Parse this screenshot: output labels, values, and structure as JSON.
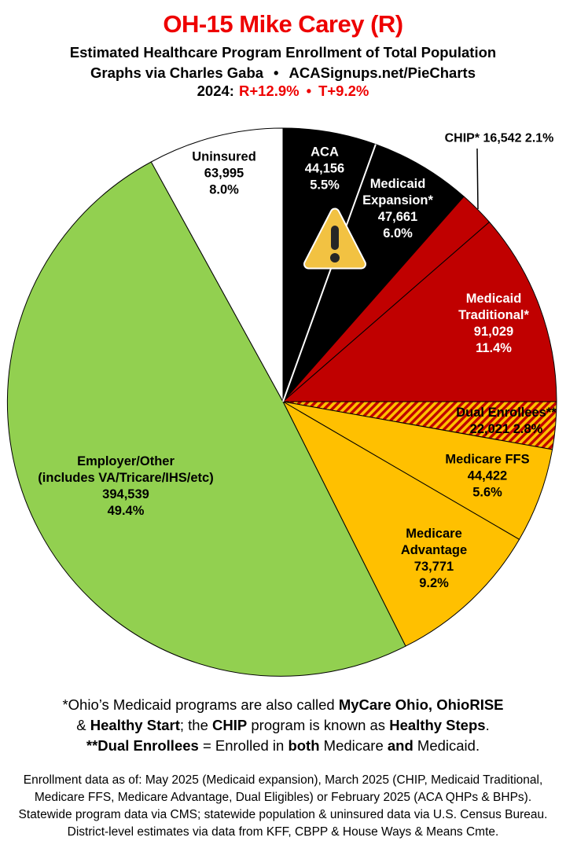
{
  "header": {
    "title": "OH-15 Mike Carey (R)",
    "subtitle": "Estimated Healthcare Program Enrollment of Total Population",
    "credit_left": "Graphs via Charles Gaba",
    "credit_bullet": "•",
    "credit_right": "ACASignups.net/PieCharts",
    "year_label": "2024:",
    "r_lean": "R+12.9%",
    "lean_bullet": "•",
    "t_lean": "T+9.2%"
  },
  "colors": {
    "title_red": "#ee0000",
    "black_slice": "#000000",
    "dark_red_slice": "#C00000",
    "gold_slice": "#FFC000",
    "green_slice": "#92D050",
    "white_slice": "#FFFFFF",
    "hatch_red": "#C00000",
    "hatch_gold": "#FFC000",
    "warning_yellow": "#F2C242",
    "warning_mark": "#262626",
    "warning_rim": "#FFFFFF"
  },
  "icons": {
    "warning": "⚠"
  },
  "chart_data": {
    "type": "pie",
    "title": "OH-15 Mike Carey (R) — Estimated Healthcare Program Enrollment of Total Population",
    "start_angle": "12 o'clock, clockwise",
    "legend_position": "labels on slices",
    "slices": [
      {
        "label": "ACA",
        "value": "44,156",
        "pct": "5.5%",
        "pct_value": 5.5,
        "color": "#000000",
        "text_color": "#ffffff"
      },
      {
        "label": "Medicaid Expansion*",
        "value": "47,661",
        "pct": "6.0%",
        "pct_value": 6.0,
        "color": "#000000",
        "text_color": "#ffffff"
      },
      {
        "label": "CHIP*",
        "value": "16,542",
        "pct": "2.1%",
        "pct_value": 2.1,
        "color": "#C00000",
        "text_color": "#000000"
      },
      {
        "label": "Medicaid Traditional*",
        "value": "91,029",
        "pct": "11.4%",
        "pct_value": 11.4,
        "color": "#C00000",
        "text_color": "#ffffff"
      },
      {
        "label": "Dual Enrollees**",
        "value": "22,021",
        "pct": "2.8%",
        "pct_value": 2.8,
        "color": "hatch",
        "text_color": "#000000"
      },
      {
        "label": "Medicare FFS",
        "value": "44,422",
        "pct": "5.6%",
        "pct_value": 5.6,
        "color": "#FFC000",
        "text_color": "#000000"
      },
      {
        "label": "Medicare Advantage",
        "value": "73,771",
        "pct": "9.2%",
        "pct_value": 9.2,
        "color": "#FFC000",
        "text_color": "#000000"
      },
      {
        "label": "Employer/Other",
        "sublabel": "(includes VA/Tricare/IHS/etc)",
        "value": "394,539",
        "pct": "49.4%",
        "pct_value": 49.4,
        "color": "#92D050",
        "text_color": "#000000"
      },
      {
        "label": "Uninsured",
        "value": "63,995",
        "pct": "8.0%",
        "pct_value": 8.0,
        "color": "#FFFFFF",
        "text_color": "#000000"
      }
    ]
  },
  "footnote_programs": {
    "lines": [
      [
        {
          "t": "*Ohio’s Medicaid programs are also called ",
          "b": false
        },
        {
          "t": "MyCare Ohio, OhioRISE",
          "b": true
        }
      ],
      [
        {
          "t": "& ",
          "b": false
        },
        {
          "t": "Healthy Start",
          "b": true
        },
        {
          "t": "; the ",
          "b": false
        },
        {
          "t": "CHIP",
          "b": true
        },
        {
          "t": " program is known as ",
          "b": false
        },
        {
          "t": "Healthy Steps",
          "b": true
        },
        {
          "t": ".",
          "b": false
        }
      ],
      [
        {
          "t": "**Dual Enrollees",
          "b": true
        },
        {
          "t": " = Enrolled in ",
          "b": false
        },
        {
          "t": "both",
          "b": true
        },
        {
          "t": " Medicare ",
          "b": false
        },
        {
          "t": "and",
          "b": true
        },
        {
          "t": " Medicaid.",
          "b": false
        }
      ]
    ]
  },
  "footnote_sources": {
    "lines": [
      "Enrollment data as of: May 2025 (Medicaid expansion), March 2025 (CHIP, Medicaid Traditional,",
      "Medicare FFS, Medicare Advantage, Dual Eligibles) or February 2025 (ACA QHPs & BHPs).",
      "Statewide program data via CMS; statewide population & uninsured data via U.S. Census Bureau.",
      "District-level estimates via data from KFF, CBPP & House Ways & Means Cmte."
    ]
  }
}
